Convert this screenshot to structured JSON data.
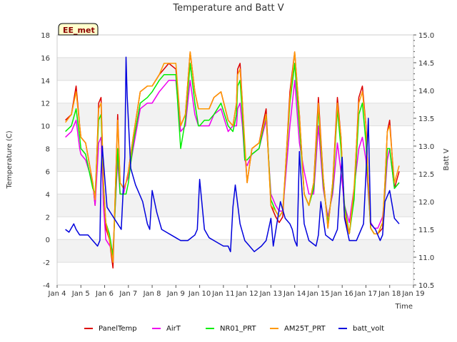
{
  "chart_data": {
    "type": "line",
    "title": "Temperature and Batt V",
    "xlabel": "Time",
    "ylabel": "Temperature (C)",
    "y2label": "Batt V",
    "badge": "EE_met",
    "xlim": [
      0,
      15
    ],
    "ylim": [
      -4,
      18
    ],
    "y2lim": [
      10.5,
      15.0
    ],
    "x_tick_values": [
      0,
      1,
      2,
      3,
      4,
      5,
      6,
      7,
      8,
      9,
      10,
      11,
      12,
      13,
      14,
      15
    ],
    "x_tick_labels": [
      "Jan 4",
      "Jan 5",
      "Jan 6",
      "Jan 7",
      "Jan 8",
      "Jan 9",
      "Jan 10",
      "Jan 11",
      "Jan 12",
      "Jan 13",
      "Jan 14",
      "Jan 15",
      "Jan 16",
      "Jan 17",
      "Jan 18",
      "Jan 19"
    ],
    "y_ticks": [
      "-4",
      "-2",
      "0",
      "2",
      "4",
      "6",
      "8",
      "10",
      "12",
      "14",
      "16",
      "18"
    ],
    "y2_ticks": [
      "10.5",
      "11.0",
      "11.5",
      "12.0",
      "12.5",
      "13.0",
      "13.5",
      "14.0",
      "14.5",
      "15.0"
    ],
    "series": [
      {
        "name": "PanelTemp",
        "color": "#dd0000",
        "axis": "left",
        "x": [
          0.35,
          0.6,
          0.8,
          0.95,
          1.0,
          1.2,
          1.5,
          1.6,
          1.75,
          1.85,
          1.95,
          2.05,
          2.2,
          2.35,
          2.55,
          2.65,
          2.8,
          2.9,
          3.0,
          3.2,
          3.5,
          3.8,
          4.0,
          4.3,
          4.5,
          4.7,
          5.0,
          5.2,
          5.4,
          5.6,
          5.8,
          5.95,
          6.0,
          6.2,
          6.4,
          6.6,
          6.9,
          7.2,
          7.4,
          7.55,
          7.6,
          7.7,
          7.8,
          7.9,
          8.0,
          8.2,
          8.5,
          8.8,
          9.0,
          9.2,
          9.35,
          9.5,
          9.8,
          10.0,
          10.2,
          10.4,
          10.6,
          10.8,
          11.0,
          11.2,
          11.4,
          11.6,
          11.8,
          11.95,
          12.1,
          12.3,
          12.5,
          12.7,
          12.85,
          13.0,
          13.1,
          13.2,
          13.35,
          13.5,
          13.7,
          13.8,
          13.9,
          14.0,
          14.2,
          14.4
        ],
        "y": [
          10.5,
          11.0,
          13.5,
          10,
          9,
          8.5,
          5,
          3,
          12,
          12.5,
          5,
          1,
          0,
          -2.5,
          11,
          5,
          4.5,
          5,
          6,
          9,
          13,
          13.5,
          13.5,
          14.5,
          15,
          15.5,
          15,
          10,
          11,
          16.5,
          13,
          11.5,
          11.5,
          11.5,
          11.5,
          12.5,
          13,
          10.5,
          10,
          12,
          15,
          15.5,
          12,
          8,
          5,
          8,
          8.5,
          11.5,
          3,
          2,
          1.5,
          2,
          13,
          16.5,
          11,
          4,
          3,
          5,
          12.5,
          5.5,
          1,
          5,
          12.5,
          9,
          2,
          0.5,
          4,
          12.5,
          13.5,
          10,
          5,
          1,
          0.5,
          0.5,
          1,
          5,
          9.5,
          10.5,
          4.5,
          6
        ]
      },
      {
        "name": "AirT",
        "color": "#ee00ee",
        "axis": "left",
        "x": [
          0.35,
          0.6,
          0.8,
          0.95,
          1.0,
          1.2,
          1.5,
          1.6,
          1.75,
          1.85,
          1.95,
          2.05,
          2.2,
          2.35,
          2.55,
          2.65,
          2.8,
          2.9,
          3.0,
          3.2,
          3.5,
          3.8,
          4.0,
          4.3,
          4.5,
          4.7,
          5.0,
          5.2,
          5.4,
          5.6,
          5.8,
          5.95,
          6.0,
          6.2,
          6.4,
          6.6,
          6.9,
          7.2,
          7.4,
          7.55,
          7.6,
          7.7,
          7.8,
          7.9,
          8.0,
          8.2,
          8.5,
          8.8,
          9.0,
          9.2,
          9.35,
          9.5,
          9.8,
          10.0,
          10.2,
          10.4,
          10.6,
          10.8,
          11.0,
          11.2,
          11.4,
          11.6,
          11.8,
          11.95,
          12.1,
          12.3,
          12.5,
          12.7,
          12.85,
          13.0,
          13.1,
          13.2,
          13.35,
          13.5,
          13.7,
          13.8,
          13.9,
          14.0,
          14.2,
          14.4
        ],
        "y": [
          9,
          9.5,
          10.5,
          8,
          7.5,
          7,
          5,
          3,
          8.5,
          9,
          3,
          0,
          -0.5,
          -1,
          7,
          4,
          4,
          5,
          5.5,
          8,
          11.5,
          12,
          12,
          13,
          13.5,
          14,
          14,
          9.5,
          10,
          14,
          11,
          10,
          10,
          10,
          10,
          11,
          11.5,
          9.5,
          10,
          10,
          11.5,
          12,
          10,
          7,
          6.5,
          7.5,
          8,
          10.5,
          4,
          3,
          2.5,
          2.5,
          10,
          14,
          8.5,
          6,
          4,
          4,
          10,
          4.5,
          2,
          4,
          8.5,
          6,
          3,
          1.5,
          4.5,
          8,
          9,
          7,
          4,
          1.5,
          1,
          1,
          2,
          4,
          7,
          8,
          4.5,
          5
        ]
      },
      {
        "name": "NR01_PRT",
        "color": "#00ee00",
        "axis": "left",
        "x": [
          0.35,
          0.6,
          0.8,
          0.95,
          1.0,
          1.2,
          1.5,
          1.6,
          1.75,
          1.85,
          1.95,
          2.05,
          2.2,
          2.35,
          2.55,
          2.65,
          2.8,
          2.9,
          3.0,
          3.2,
          3.5,
          3.8,
          4.0,
          4.3,
          4.5,
          4.7,
          5.0,
          5.2,
          5.4,
          5.6,
          5.8,
          5.95,
          6.0,
          6.2,
          6.4,
          6.6,
          6.9,
          7.2,
          7.4,
          7.55,
          7.6,
          7.7,
          7.8,
          7.9,
          8.0,
          8.2,
          8.5,
          8.8,
          9.0,
          9.2,
          9.35,
          9.5,
          9.8,
          10.0,
          10.2,
          10.4,
          10.6,
          10.8,
          11.0,
          11.2,
          11.4,
          11.6,
          11.8,
          11.95,
          12.1,
          12.3,
          12.5,
          12.7,
          12.85,
          13.0,
          13.1,
          13.2,
          13.35,
          13.5,
          13.7,
          13.8,
          13.9,
          14.0,
          14.2,
          14.4
        ],
        "y": [
          9.5,
          10,
          11.5,
          9,
          8,
          7.5,
          4.5,
          4,
          10.5,
          11,
          4.5,
          1.5,
          0.5,
          -1.5,
          8,
          4,
          4,
          4,
          5,
          8.5,
          12,
          12.5,
          13,
          14,
          14.5,
          14.5,
          14.5,
          8,
          10.5,
          15.5,
          12,
          10,
          10,
          10.5,
          10.5,
          11,
          12,
          10,
          9.5,
          11,
          13.5,
          14,
          11,
          7,
          7,
          7.5,
          8,
          11,
          3.5,
          2.5,
          2,
          2.5,
          12,
          15.5,
          10,
          4,
          3,
          4.5,
          11.5,
          5,
          1.5,
          4.5,
          11.5,
          8,
          3,
          0.5,
          3.5,
          11,
          12,
          8.5,
          4.5,
          1,
          0.5,
          0.5,
          1.5,
          4.5,
          8,
          8,
          4.5,
          5
        ]
      },
      {
        "name": "AM25T_PRT",
        "color": "#ff9900",
        "axis": "left",
        "x": [
          0.35,
          0.6,
          0.8,
          0.95,
          1.0,
          1.2,
          1.5,
          1.6,
          1.75,
          1.85,
          1.95,
          2.05,
          2.2,
          2.35,
          2.55,
          2.65,
          2.8,
          2.9,
          3.0,
          3.2,
          3.5,
          3.8,
          4.0,
          4.3,
          4.5,
          4.7,
          5.0,
          5.2,
          5.4,
          5.6,
          5.8,
          5.95,
          6.0,
          6.2,
          6.4,
          6.6,
          6.9,
          7.2,
          7.4,
          7.55,
          7.6,
          7.7,
          7.8,
          7.9,
          8.0,
          8.2,
          8.5,
          8.8,
          9.0,
          9.2,
          9.35,
          9.5,
          9.8,
          10.0,
          10.2,
          10.4,
          10.6,
          10.8,
          11.0,
          11.2,
          11.4,
          11.6,
          11.8,
          11.95,
          12.1,
          12.3,
          12.5,
          12.7,
          12.85,
          13.0,
          13.1,
          13.2,
          13.35,
          13.5,
          13.7,
          13.8,
          13.9,
          14.0,
          14.2,
          14.4
        ],
        "y": [
          10.3,
          11,
          13,
          10,
          9,
          8.5,
          5,
          3.5,
          11.5,
          12,
          5,
          1.5,
          0,
          -2,
          10.5,
          5,
          4.5,
          5,
          6,
          9,
          13,
          13.5,
          13.5,
          14.5,
          15.5,
          15.5,
          15.5,
          10,
          11,
          16.5,
          13,
          11.5,
          11.5,
          11.5,
          11.5,
          12.5,
          13,
          10.5,
          10,
          12,
          14.5,
          15,
          12,
          8.5,
          5,
          8,
          8.5,
          11,
          3,
          2.5,
          2,
          2.5,
          12.5,
          16.5,
          11,
          4,
          3,
          5,
          12,
          5.5,
          1,
          5,
          12,
          9,
          2.5,
          0.5,
          4.5,
          12,
          13,
          10,
          5,
          1,
          0.5,
          0.5,
          1.5,
          5,
          9.5,
          10,
          5,
          6.5
        ]
      },
      {
        "name": "batt_volt",
        "color": "#0000dd",
        "axis": "right",
        "x": [
          0.35,
          0.5,
          0.7,
          0.8,
          0.95,
          1.1,
          1.3,
          1.5,
          1.7,
          1.8,
          1.85,
          1.9,
          2.1,
          2.4,
          2.7,
          2.85,
          2.9,
          2.95,
          3.1,
          3.3,
          3.6,
          3.7,
          3.8,
          3.9,
          4.0,
          4.2,
          4.4,
          4.6,
          4.8,
          5.0,
          5.2,
          5.5,
          5.8,
          5.9,
          6.0,
          6.2,
          6.4,
          6.6,
          6.8,
          7.0,
          7.2,
          7.3,
          7.4,
          7.5,
          7.7,
          7.9,
          8.1,
          8.3,
          8.6,
          8.8,
          8.9,
          9.0,
          9.1,
          9.4,
          9.6,
          9.8,
          9.9,
          10.0,
          10.1,
          10.2,
          10.4,
          10.6,
          10.9,
          11.0,
          11.1,
          11.3,
          11.6,
          11.8,
          11.9,
          12.0,
          12.1,
          12.3,
          12.6,
          12.9,
          13.0,
          13.1,
          13.2,
          13.4,
          13.6,
          13.7,
          13.8,
          14.0,
          14.2,
          14.4
        ],
        "y": [
          11.5,
          11.45,
          11.6,
          11.5,
          11.4,
          11.4,
          11.4,
          11.3,
          11.2,
          11.3,
          12.5,
          13.0,
          11.9,
          11.7,
          11.5,
          12.8,
          14.6,
          13.9,
          12.6,
          12.3,
          12.0,
          11.8,
          11.6,
          11.5,
          12.2,
          11.8,
          11.5,
          11.45,
          11.4,
          11.35,
          11.3,
          11.3,
          11.4,
          11.5,
          12.4,
          11.5,
          11.35,
          11.3,
          11.25,
          11.2,
          11.2,
          11.1,
          11.9,
          12.3,
          11.6,
          11.3,
          11.2,
          11.1,
          11.2,
          11.3,
          11.5,
          11.7,
          11.2,
          12.0,
          11.7,
          11.6,
          11.5,
          11.3,
          11.2,
          12.9,
          11.6,
          11.3,
          11.2,
          11.4,
          12.0,
          11.4,
          11.3,
          11.5,
          12.2,
          12.8,
          11.7,
          11.3,
          11.3,
          11.6,
          12.5,
          13.5,
          11.6,
          11.5,
          11.3,
          11.4,
          12.0,
          12.2,
          11.7,
          11.6
        ]
      }
    ]
  }
}
